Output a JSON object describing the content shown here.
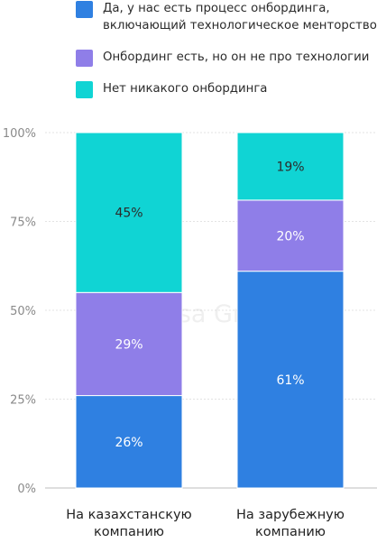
{
  "chart_data": {
    "type": "bar",
    "stacked": true,
    "categories": [
      [
        "На казахстанскую",
        "компанию"
      ],
      [
        "На зарубежную",
        "компанию"
      ]
    ],
    "series": [
      {
        "name": "Да, у нас есть процесс онбординга, включающий технологическое менторство",
        "legend_lines": [
          "Да, у нас есть процесс онбординга,",
          "включающий технологическое менторство"
        ],
        "color": "#2f80e1",
        "label_color": "#ffffff",
        "values": [
          26,
          61
        ],
        "value_labels": [
          "26%",
          "61%"
        ]
      },
      {
        "name": "Онбординг есть, но он не про технологии",
        "legend_lines": [
          "Онбординг есть, но он не про технологии"
        ],
        "color": "#8f7ee8",
        "label_color": "#ffffff",
        "values": [
          29,
          20
        ],
        "value_labels": [
          "29%",
          "20%"
        ]
      },
      {
        "name": "Нет никакого онбординга",
        "legend_lines": [
          "Нет никакого онбординга"
        ],
        "color": "#10d4d4",
        "label_color": "#2b2b2b",
        "values": [
          45,
          19
        ],
        "value_labels": [
          "45%",
          "19%"
        ]
      }
    ],
    "ylim": [
      0,
      100
    ],
    "yticks": [
      0,
      25,
      50,
      75,
      100
    ],
    "ytick_labels": [
      "0%",
      "25%",
      "50%",
      "75%",
      "100%"
    ],
    "grid": true,
    "legend_position": "top",
    "watermark": "Kolesa Group"
  }
}
